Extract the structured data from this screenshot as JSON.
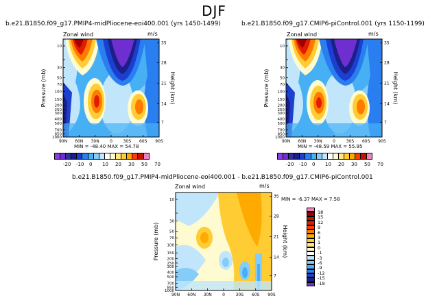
{
  "figure_title": "DJF",
  "colors": {
    "scale": [
      "#8a3de0",
      "#6f2fd0",
      "#2f2fa0",
      "#1a1f8a",
      "#1c3fd0",
      "#2a7ff0",
      "#47b0f5",
      "#86ccf8",
      "#c1e6fb",
      "#ffffff",
      "#fffbd0",
      "#ffe97a",
      "#ffcc33",
      "#ffaa00",
      "#ff7a00",
      "#ff3c00",
      "#e31b00",
      "#c41200",
      "#a00000",
      "#f080c0"
    ]
  },
  "chart_data": [
    {
      "type": "heatmap",
      "title": "b.e21.B1850.f09_g17.PMIP4-midPliocene-eoi400.001 (yrs 1450-1499)",
      "field_label": "Zonal wind",
      "units": "m/s",
      "ylabel": "Pressure (mb)",
      "ylabel_right": "Height (km)",
      "x_ticks": [
        "90N",
        "60N",
        "30N",
        "0",
        "30S",
        "60S",
        "90S"
      ],
      "y_ticks": [
        "10",
        "20",
        "30",
        "50",
        "70",
        "100",
        "150",
        "200",
        "250",
        "300",
        "400",
        "500",
        "700",
        "850",
        "1000"
      ],
      "y_right_ticks": [
        "35",
        "28",
        "21",
        "14",
        "7"
      ],
      "stats": "MIN = -48.40    MAX = 54.78",
      "colorbar_labels": [
        "-20",
        "-10",
        "0",
        "10",
        "20",
        "30",
        "50",
        "70"
      ]
    },
    {
      "type": "heatmap",
      "title": "b.e21.B1850.f09_g17.CMIP6-piControl.001 (yrs 1150-1199)",
      "field_label": "Zonal wind",
      "units": "m/s",
      "ylabel": "Pressure (mb)",
      "ylabel_right": "Height (km)",
      "x_ticks": [
        "90N",
        "60N",
        "30N",
        "0",
        "30S",
        "60S",
        "90S"
      ],
      "y_ticks": [
        "10",
        "20",
        "30",
        "50",
        "70",
        "100",
        "150",
        "200",
        "250",
        "300",
        "400",
        "500",
        "700",
        "850",
        "1000"
      ],
      "y_right_ticks": [
        "35",
        "28",
        "21",
        "14",
        "7"
      ],
      "stats": "MIN = -48.59    MAX = 55.95",
      "colorbar_labels": [
        "-20",
        "-10",
        "0",
        "10",
        "20",
        "30",
        "50",
        "70"
      ]
    },
    {
      "type": "heatmap",
      "title": "b.e21.B1850.f09_g17.PMIP4-midPliocene-eoi400.001  -  b.e21.B1850.f09_g17.CMIP6-piControl.001",
      "field_label": "Zonal wind",
      "units": "m/s",
      "ylabel": "Pressure (mb)",
      "ylabel_right": "Height (km)",
      "x_ticks": [
        "90N",
        "60N",
        "30N",
        "0",
        "30S",
        "60S",
        "90S"
      ],
      "y_ticks": [
        "10",
        "20",
        "30",
        "50",
        "70",
        "100",
        "150",
        "200",
        "250",
        "300",
        "400",
        "500",
        "700",
        "850",
        "1000"
      ],
      "y_right_ticks": [
        "35",
        "28",
        "21",
        "14",
        "7"
      ],
      "stats": "MIN =   -6.37    MAX =    7.58",
      "colorbar_labels": [
        "18",
        "15",
        "12",
        "9",
        "6",
        "3",
        "1",
        "0",
        "-1",
        "-3",
        "-6",
        "-9",
        "-12",
        "-15",
        "-18"
      ]
    }
  ]
}
